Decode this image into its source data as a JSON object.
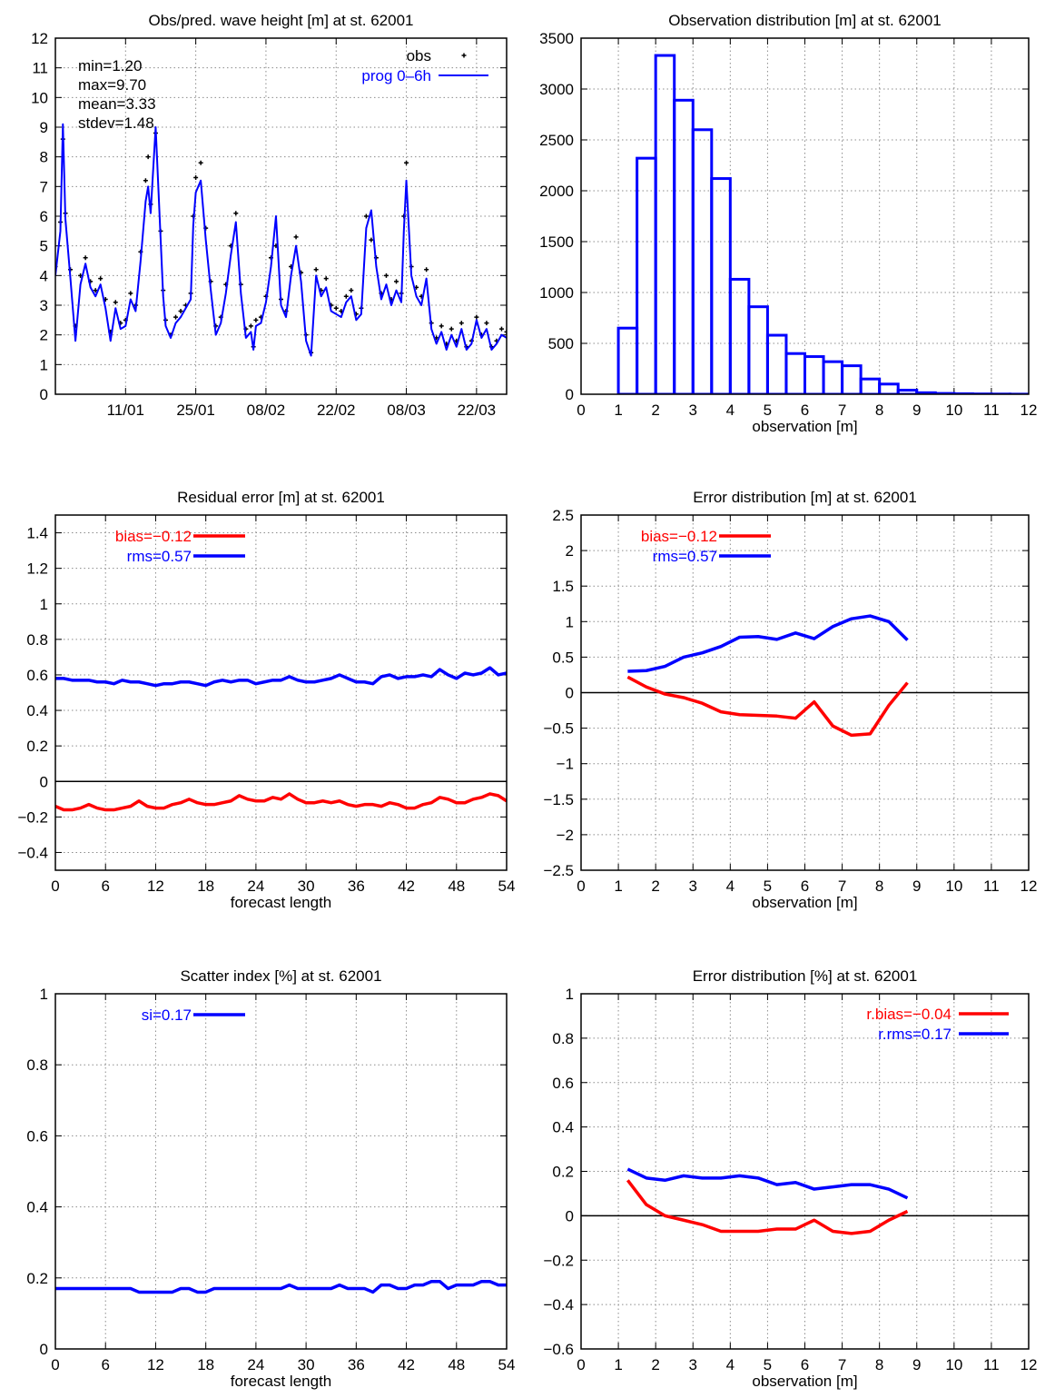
{
  "chart_data": [
    {
      "type": "line",
      "title": "Obs/pred. wave height [m] at st. 62001",
      "xlabel": "",
      "ylabel": "",
      "xlim": [
        0,
        90
      ],
      "ylim": [
        0,
        12
      ],
      "x_tick_labels": [
        "11/01",
        "25/01",
        "08/02",
        "22/02",
        "08/03",
        "22/03"
      ],
      "x_tick_positions": [
        14,
        28,
        42,
        56,
        70,
        84
      ],
      "y_ticks": [
        0,
        1,
        2,
        3,
        4,
        5,
        6,
        7,
        8,
        9,
        10,
        11,
        12
      ],
      "grid": true,
      "legend_position": "top-right",
      "stats": [
        "min=1.20",
        "max=9.70",
        "mean=3.33",
        "stdev=1.48"
      ],
      "series": [
        {
          "name": "obs",
          "style": "points",
          "color": "#000000",
          "x": [
            0,
            1,
            1.5,
            2,
            3,
            4,
            5,
            6,
            7,
            8,
            9,
            10,
            11,
            12,
            13,
            14,
            15,
            16,
            17,
            18,
            18.5,
            19,
            20,
            21,
            21.5,
            22,
            23,
            24,
            25,
            26,
            27,
            27.5,
            28,
            29,
            30,
            31,
            32,
            33,
            34,
            35,
            36,
            37,
            38,
            39,
            39.5,
            40,
            41,
            42,
            43,
            44,
            45,
            46,
            47,
            48,
            49,
            50,
            51,
            52,
            53,
            54,
            55,
            56,
            57,
            58,
            59,
            60,
            61,
            62,
            63,
            64,
            65,
            66,
            67,
            68,
            69,
            69.5,
            70,
            71,
            72,
            73,
            74,
            75,
            76,
            77,
            78,
            79,
            80,
            81,
            82,
            83,
            84,
            85,
            86,
            87,
            88,
            89,
            90
          ],
          "y": [
            4.3,
            5.8,
            8.6,
            6.1,
            4.2,
            2.3,
            4.0,
            4.6,
            3.8,
            3.5,
            3.9,
            3.2,
            2.1,
            3.1,
            2.4,
            2.5,
            3.4,
            3.0,
            4.8,
            7.2,
            8.0,
            6.4,
            8.8,
            5.5,
            3.5,
            2.5,
            2.0,
            2.6,
            2.8,
            3.0,
            3.4,
            6.0,
            7.3,
            7.8,
            5.6,
            3.8,
            2.3,
            2.6,
            3.7,
            5.0,
            6.1,
            3.7,
            2.2,
            2.3,
            1.6,
            2.5,
            2.6,
            3.3,
            4.6,
            5.0,
            3.2,
            2.8,
            4.3,
            5.3,
            4.1,
            2.0,
            1.4,
            4.2,
            3.5,
            3.9,
            3.0,
            2.9,
            2.8,
            3.3,
            3.5,
            2.7,
            2.9,
            6.0,
            5.2,
            4.6,
            3.4,
            4.0,
            3.2,
            3.8,
            3.4,
            6.0,
            7.8,
            4.3,
            3.6,
            3.3,
            4.2,
            2.4,
            1.9,
            2.3,
            1.7,
            2.2,
            1.8,
            2.4,
            1.6,
            1.8,
            2.6,
            2.0,
            2.4,
            1.6,
            1.8,
            2.2,
            2.1
          ]
        },
        {
          "name": "prog 0–6h",
          "style": "line",
          "color": "#0000ff",
          "x": [
            0,
            1,
            1.5,
            2,
            3,
            4,
            5,
            6,
            7,
            8,
            9,
            10,
            11,
            12,
            13,
            14,
            15,
            16,
            17,
            18,
            18.5,
            19,
            20,
            21,
            21.5,
            22,
            23,
            24,
            25,
            26,
            27,
            27.5,
            28,
            29,
            30,
            31,
            32,
            33,
            34,
            35,
            36,
            37,
            38,
            39,
            39.5,
            40,
            41,
            42,
            43,
            44,
            45,
            46,
            47,
            48,
            49,
            50,
            51,
            52,
            53,
            54,
            55,
            56,
            57,
            58,
            59,
            60,
            61,
            62,
            63,
            64,
            65,
            66,
            67,
            68,
            69,
            69.5,
            70,
            71,
            72,
            73,
            74,
            75,
            76,
            77,
            78,
            79,
            80,
            81,
            82,
            83,
            84,
            85,
            86,
            87,
            88,
            89,
            90
          ],
          "y": [
            4.0,
            5.5,
            9.1,
            5.9,
            3.9,
            1.8,
            3.7,
            4.4,
            3.6,
            3.3,
            3.7,
            2.9,
            1.8,
            2.9,
            2.2,
            2.3,
            3.2,
            2.8,
            4.5,
            6.5,
            7.0,
            6.1,
            9.0,
            5.2,
            3.3,
            2.3,
            1.9,
            2.4,
            2.6,
            2.9,
            3.2,
            5.7,
            6.8,
            7.2,
            5.2,
            3.5,
            2.0,
            2.4,
            3.4,
            4.7,
            5.8,
            3.4,
            1.9,
            2.1,
            1.5,
            2.3,
            2.4,
            3.1,
            4.3,
            6.0,
            3.0,
            2.6,
            4.0,
            5.0,
            3.8,
            1.8,
            1.3,
            4.0,
            3.3,
            3.6,
            2.8,
            2.7,
            2.6,
            3.1,
            3.3,
            2.5,
            2.7,
            5.6,
            6.2,
            4.3,
            3.2,
            3.7,
            3.0,
            3.5,
            3.1,
            5.5,
            7.2,
            4.0,
            3.3,
            3.0,
            3.9,
            2.2,
            1.7,
            2.1,
            1.5,
            2.0,
            1.6,
            2.2,
            1.5,
            1.7,
            2.5,
            1.9,
            2.2,
            1.5,
            1.7,
            2.0,
            1.9
          ]
        }
      ]
    },
    {
      "type": "bar",
      "title": "Observation distribution [m] at st. 62001",
      "xlabel": "observation [m]",
      "ylabel": "",
      "xlim": [
        0,
        12
      ],
      "ylim": [
        0,
        3500
      ],
      "x_ticks": [
        0,
        1,
        2,
        3,
        4,
        5,
        6,
        7,
        8,
        9,
        10,
        11,
        12
      ],
      "y_ticks": [
        0,
        500,
        1000,
        1500,
        2000,
        2500,
        3000,
        3500
      ],
      "grid": true,
      "bin_width": 0.5,
      "bin_left_edges": [
        0.5,
        1.0,
        1.5,
        2.0,
        2.5,
        3.0,
        3.5,
        4.0,
        4.5,
        5.0,
        5.5,
        6.0,
        6.5,
        7.0,
        7.5,
        8.0,
        8.5,
        9.0,
        9.5,
        10.0,
        10.5,
        11.0,
        11.5
      ],
      "values": [
        0,
        650,
        2320,
        3330,
        2890,
        2600,
        2120,
        1130,
        860,
        580,
        400,
        370,
        320,
        280,
        150,
        100,
        40,
        15,
        8,
        5,
        3,
        2,
        1
      ],
      "color": "#0000ff"
    },
    {
      "type": "line",
      "title": "Residual error [m] at st. 62001",
      "xlabel": "forecast length",
      "ylabel": "",
      "xlim": [
        0,
        54
      ],
      "ylim": [
        -0.5,
        1.5
      ],
      "x_ticks": [
        0,
        6,
        12,
        18,
        24,
        30,
        36,
        42,
        48,
        54
      ],
      "y_ticks": [
        -0.4,
        -0.2,
        0,
        0.2,
        0.4,
        0.6,
        0.8,
        1,
        1.2,
        1.4
      ],
      "grid": true,
      "legend_position": "top-left",
      "zero_line": true,
      "x": [
        0,
        1,
        2,
        3,
        4,
        5,
        6,
        7,
        8,
        9,
        10,
        11,
        12,
        13,
        14,
        15,
        16,
        17,
        18,
        19,
        20,
        21,
        22,
        23,
        24,
        25,
        26,
        27,
        28,
        29,
        30,
        31,
        32,
        33,
        34,
        35,
        36,
        37,
        38,
        39,
        40,
        41,
        42,
        43,
        44,
        45,
        46,
        47,
        48,
        49,
        50,
        51,
        52,
        53,
        54
      ],
      "series": [
        {
          "name": "bias=−0.12",
          "color": "#ff0000",
          "values": [
            -0.14,
            -0.16,
            -0.16,
            -0.15,
            -0.13,
            -0.15,
            -0.16,
            -0.16,
            -0.15,
            -0.14,
            -0.11,
            -0.14,
            -0.15,
            -0.15,
            -0.13,
            -0.12,
            -0.1,
            -0.12,
            -0.13,
            -0.13,
            -0.12,
            -0.11,
            -0.08,
            -0.1,
            -0.11,
            -0.11,
            -0.09,
            -0.1,
            -0.07,
            -0.1,
            -0.12,
            -0.12,
            -0.11,
            -0.12,
            -0.11,
            -0.13,
            -0.14,
            -0.13,
            -0.13,
            -0.14,
            -0.12,
            -0.13,
            -0.15,
            -0.15,
            -0.13,
            -0.12,
            -0.09,
            -0.1,
            -0.12,
            -0.12,
            -0.1,
            -0.09,
            -0.07,
            -0.08,
            -0.11
          ]
        },
        {
          "name": "rms=0.57",
          "color": "#0000ff",
          "values": [
            0.58,
            0.58,
            0.57,
            0.57,
            0.57,
            0.56,
            0.56,
            0.55,
            0.57,
            0.56,
            0.56,
            0.55,
            0.54,
            0.55,
            0.55,
            0.56,
            0.56,
            0.55,
            0.54,
            0.56,
            0.57,
            0.56,
            0.57,
            0.57,
            0.55,
            0.56,
            0.57,
            0.57,
            0.59,
            0.57,
            0.56,
            0.56,
            0.57,
            0.58,
            0.6,
            0.58,
            0.56,
            0.56,
            0.55,
            0.59,
            0.6,
            0.58,
            0.59,
            0.59,
            0.6,
            0.59,
            0.63,
            0.6,
            0.58,
            0.61,
            0.6,
            0.61,
            0.64,
            0.6,
            0.61
          ]
        }
      ]
    },
    {
      "type": "line",
      "title": "Error distribution [m] at st. 62001",
      "xlabel": "observation [m]",
      "ylabel": "",
      "xlim": [
        0,
        12
      ],
      "ylim": [
        -2.5,
        2.5
      ],
      "x_ticks": [
        0,
        1,
        2,
        3,
        4,
        5,
        6,
        7,
        8,
        9,
        10,
        11,
        12
      ],
      "y_ticks": [
        -2.5,
        -2,
        -1.5,
        -1,
        -0.5,
        0,
        0.5,
        1,
        1.5,
        2,
        2.5
      ],
      "grid": true,
      "legend_position": "top-left",
      "zero_line": true,
      "x": [
        1.25,
        1.75,
        2.25,
        2.75,
        3.25,
        3.75,
        4.25,
        4.75,
        5.25,
        5.75,
        6.25,
        6.75,
        7.25,
        7.75,
        8.25,
        8.75
      ],
      "series": [
        {
          "name": "bias=−0.12",
          "color": "#ff0000",
          "values": [
            0.22,
            0.08,
            -0.02,
            -0.07,
            -0.15,
            -0.27,
            -0.31,
            -0.32,
            -0.33,
            -0.36,
            -0.13,
            -0.47,
            -0.6,
            -0.58,
            -0.18,
            0.14
          ]
        },
        {
          "name": "rms=0.57",
          "color": "#0000ff",
          "values": [
            0.3,
            0.31,
            0.37,
            0.5,
            0.56,
            0.65,
            0.78,
            0.79,
            0.75,
            0.84,
            0.76,
            0.93,
            1.04,
            1.08,
            1.0,
            0.74
          ]
        }
      ]
    },
    {
      "type": "line",
      "title": "Scatter index [%] at st. 62001",
      "xlabel": "forecast length",
      "ylabel": "",
      "xlim": [
        0,
        54
      ],
      "ylim": [
        0,
        1
      ],
      "x_ticks": [
        0,
        6,
        12,
        18,
        24,
        30,
        36,
        42,
        48,
        54
      ],
      "y_ticks": [
        0,
        0.2,
        0.4,
        0.6,
        0.8,
        1
      ],
      "grid": true,
      "legend_position": "top-left",
      "x": [
        0,
        1,
        2,
        3,
        4,
        5,
        6,
        7,
        8,
        9,
        10,
        11,
        12,
        13,
        14,
        15,
        16,
        17,
        18,
        19,
        20,
        21,
        22,
        23,
        24,
        25,
        26,
        27,
        28,
        29,
        30,
        31,
        32,
        33,
        34,
        35,
        36,
        37,
        38,
        39,
        40,
        41,
        42,
        43,
        44,
        45,
        46,
        47,
        48,
        49,
        50,
        51,
        52,
        53,
        54
      ],
      "series": [
        {
          "name": "si=0.17",
          "color": "#0000ff",
          "values": [
            0.17,
            0.17,
            0.17,
            0.17,
            0.17,
            0.17,
            0.17,
            0.17,
            0.17,
            0.17,
            0.16,
            0.16,
            0.16,
            0.16,
            0.16,
            0.17,
            0.17,
            0.16,
            0.16,
            0.17,
            0.17,
            0.17,
            0.17,
            0.17,
            0.17,
            0.17,
            0.17,
            0.17,
            0.18,
            0.17,
            0.17,
            0.17,
            0.17,
            0.17,
            0.18,
            0.17,
            0.17,
            0.17,
            0.16,
            0.18,
            0.18,
            0.17,
            0.17,
            0.18,
            0.18,
            0.19,
            0.19,
            0.17,
            0.18,
            0.18,
            0.18,
            0.19,
            0.19,
            0.18,
            0.18
          ]
        }
      ]
    },
    {
      "type": "line",
      "title": "Error distribution [%] at st. 62001",
      "xlabel": "observation [m]",
      "ylabel": "",
      "xlim": [
        0,
        12
      ],
      "ylim": [
        -0.6,
        1
      ],
      "x_ticks": [
        0,
        1,
        2,
        3,
        4,
        5,
        6,
        7,
        8,
        9,
        10,
        11,
        12
      ],
      "y_ticks": [
        -0.6,
        -0.4,
        -0.2,
        0,
        0.2,
        0.4,
        0.6,
        0.8,
        1
      ],
      "grid": true,
      "legend_position": "top-right",
      "zero_line": true,
      "x": [
        1.25,
        1.75,
        2.25,
        2.75,
        3.25,
        3.75,
        4.25,
        4.75,
        5.25,
        5.75,
        6.25,
        6.75,
        7.25,
        7.75,
        8.25,
        8.75
      ],
      "series": [
        {
          "name": "r.bias=−0.04",
          "color": "#ff0000",
          "values": [
            0.16,
            0.05,
            0.0,
            -0.02,
            -0.04,
            -0.07,
            -0.07,
            -0.07,
            -0.06,
            -0.06,
            -0.02,
            -0.07,
            -0.08,
            -0.07,
            -0.02,
            0.02
          ]
        },
        {
          "name": "r.rms=0.17",
          "color": "#0000ff",
          "values": [
            0.21,
            0.17,
            0.16,
            0.18,
            0.17,
            0.17,
            0.18,
            0.17,
            0.14,
            0.15,
            0.12,
            0.13,
            0.14,
            0.14,
            0.12,
            0.08
          ]
        }
      ]
    }
  ]
}
